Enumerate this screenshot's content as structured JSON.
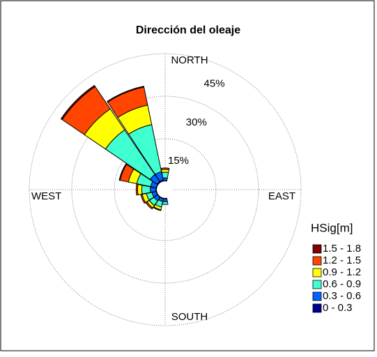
{
  "chart_data": {
    "type": "rose",
    "title": "Dirección del oleaje",
    "direction_labels": [
      "NORTH",
      "EAST",
      "SOUTH",
      "WEST"
    ],
    "x": [
      0,
      180,
      202.5,
      225,
      247.5,
      270,
      292.5,
      315,
      337.5
    ],
    "rlim": [
      0,
      45
    ],
    "rticks": [
      {
        "value": 15,
        "label": "15%"
      },
      {
        "value": 30,
        "label": "30%"
      },
      {
        "value": 45,
        "label": "45%"
      }
    ],
    "legend_title": "HSig[m]",
    "series": [
      {
        "name": "0 - 0.3",
        "color": "#000090",
        "values": [
          0.2,
          0.3,
          0.3,
          0.3,
          0.3,
          0.3,
          0.3,
          0.5,
          0.5
        ]
      },
      {
        "name": "0.3 - 0.6",
        "color": "#0064ff",
        "values": [
          1,
          1,
          1,
          1.5,
          1.5,
          2,
          2,
          3,
          3
        ]
      },
      {
        "name": "0.6 - 0.9",
        "color": "#40ffd0",
        "values": [
          2,
          1,
          2,
          2,
          2,
          3,
          5,
          19,
          17
        ]
      },
      {
        "name": "0.9 - 1.2",
        "color": "#ffff00",
        "values": [
          1,
          0,
          1,
          1,
          1.5,
          1.5,
          3,
          9,
          7
        ]
      },
      {
        "name": "1.2 - 1.5",
        "color": "#ff4500",
        "values": [
          0.5,
          0,
          0.3,
          0.5,
          0.5,
          0.5,
          3,
          9.5,
          6.5
        ]
      },
      {
        "name": "1.5 - 1.8",
        "color": "#800000",
        "values": [
          0,
          0,
          0,
          0,
          0,
          0,
          0.3,
          0.5,
          0.3
        ]
      }
    ]
  }
}
